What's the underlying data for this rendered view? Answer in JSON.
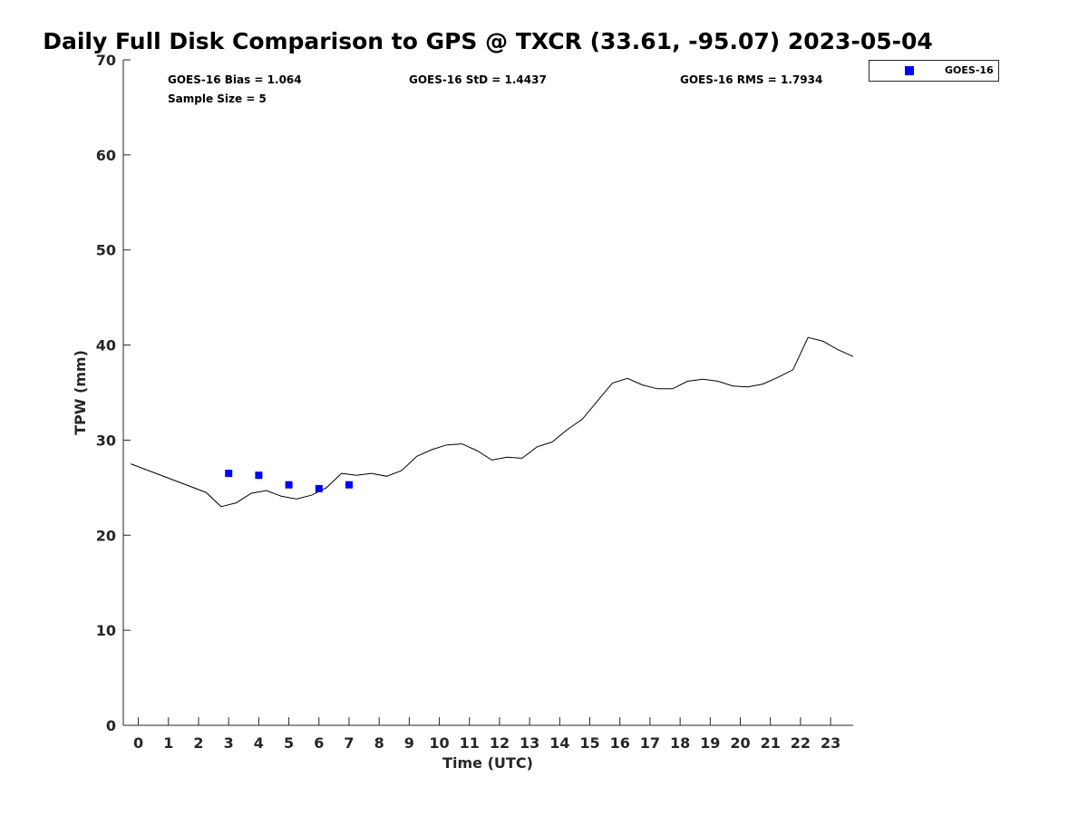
{
  "chart_data": {
    "type": "line",
    "title": "Daily Full Disk Comparison to GPS @ TXCR (33.61, -95.07) 2023-05-04",
    "xlabel": "Time (UTC)",
    "ylabel": "TPW (mm)",
    "xlim": [
      -0.5,
      23.75
    ],
    "ylim": [
      0,
      70
    ],
    "x_ticks": [
      "0",
      "1",
      "2",
      "3",
      "4",
      "5",
      "6",
      "7",
      "8",
      "9",
      "10",
      "11",
      "12",
      "13",
      "14",
      "15",
      "16",
      "17",
      "18",
      "19",
      "20",
      "21",
      "22",
      "23"
    ],
    "y_ticks": [
      "0",
      "10",
      "20",
      "30",
      "40",
      "50",
      "60",
      "70"
    ],
    "grid": false,
    "legend_position": "top-right",
    "stats": {
      "bias": "GOES-16 Bias = 1.064",
      "std": "GOES-16 StD = 1.4437",
      "rms": "GOES-16 RMS = 1.7934",
      "sample_size": "Sample Size = 5"
    },
    "series": [
      {
        "type": "line",
        "color": "#000000",
        "x": [
          -0.25,
          2.25,
          2.75,
          3.25,
          3.75,
          4.25,
          4.75,
          5.25,
          5.75,
          6.25,
          6.75,
          7.25,
          7.75,
          8.25,
          8.75,
          9.25,
          9.75,
          10.25,
          10.75,
          11.25,
          11.75,
          12.25,
          12.75,
          13.25,
          13.75,
          14.25,
          14.75,
          15.25,
          15.75,
          16.25,
          16.75,
          17.25,
          17.75,
          18.25,
          18.75,
          19.25,
          19.75,
          20.25,
          20.75,
          21.25,
          21.75,
          22.25,
          22.75,
          23.25,
          23.75
        ],
        "y": [
          27.5,
          24.5,
          23.0,
          23.4,
          24.4,
          24.7,
          24.1,
          23.8,
          24.2,
          25.0,
          26.5,
          26.3,
          26.5,
          26.2,
          26.8,
          28.3,
          29.0,
          29.5,
          29.6,
          28.9,
          27.9,
          28.2,
          28.1,
          29.3,
          29.8,
          31.1,
          32.2,
          34.1,
          36.0,
          36.5,
          35.8,
          35.4,
          35.4,
          36.2,
          36.4,
          36.2,
          35.7,
          35.6,
          35.9,
          36.6,
          37.4,
          40.8,
          40.4,
          39.5,
          38.8
        ]
      },
      {
        "name": "GOES-16",
        "type": "scatter",
        "marker": "square",
        "color": "#0000ff",
        "x": [
          3.0,
          4.0,
          5.0,
          6.0,
          7.0
        ],
        "y": [
          26.5,
          26.3,
          25.3,
          24.9,
          25.3
        ]
      }
    ]
  }
}
